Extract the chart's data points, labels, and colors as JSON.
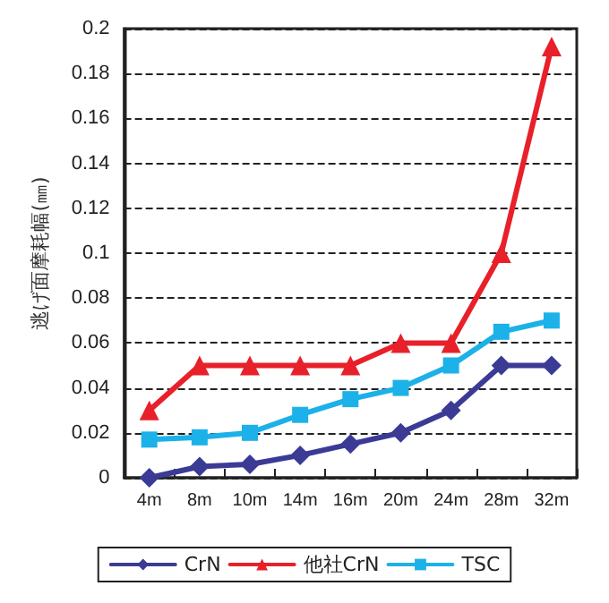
{
  "chart_data": {
    "type": "line",
    "ylabel": "逃げ面摩耗幅(㎜)",
    "categories": [
      "4m",
      "8m",
      "10m",
      "14m",
      "16m",
      "20m",
      "24m",
      "28m",
      "32m"
    ],
    "series": [
      {
        "name": "CrN",
        "color": "#3b3b96",
        "marker": "diamond",
        "values": [
          0,
          0.005,
          0.006,
          0.01,
          0.015,
          0.02,
          0.03,
          0.05,
          0.05
        ]
      },
      {
        "name": "他社CrN",
        "color": "#e8202a",
        "marker": "triangle",
        "values": [
          0.03,
          0.05,
          0.05,
          0.05,
          0.05,
          0.06,
          0.06,
          0.1,
          0.192
        ]
      },
      {
        "name": "TSC",
        "color": "#1cb1e8",
        "marker": "square",
        "values": [
          0.017,
          0.018,
          0.02,
          0.028,
          0.035,
          0.04,
          0.05,
          0.065,
          0.07
        ]
      }
    ],
    "ylim": [
      0,
      0.2
    ],
    "yticks": [
      0,
      0.02,
      0.04,
      0.06,
      0.08,
      0.1,
      0.12,
      0.14,
      0.16,
      0.18,
      0.2
    ],
    "grid": "y",
    "legend": "bottom",
    "line_style": "solid"
  }
}
